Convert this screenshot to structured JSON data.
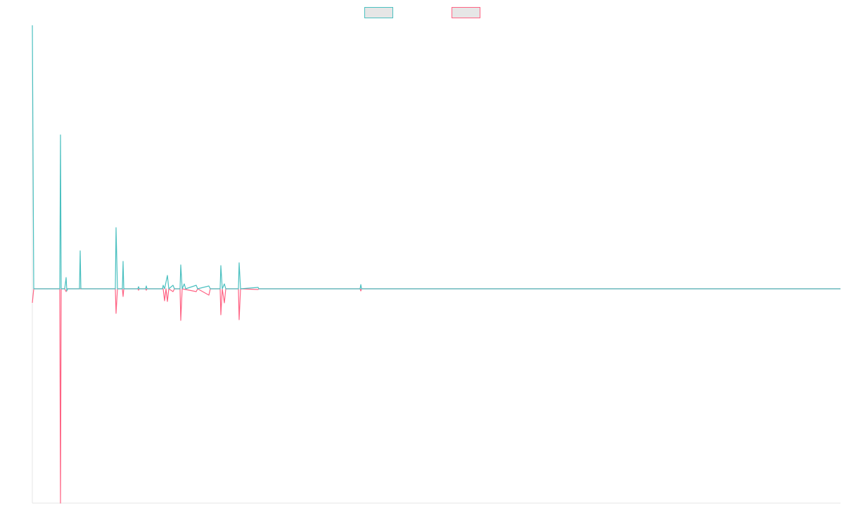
{
  "chart_data": {
    "type": "line",
    "xlim": [
      0,
      1149
    ],
    "ylim": [
      -305,
      375
    ],
    "grid": false,
    "legend": "top",
    "series": [
      {
        "color": "#4bc0c0",
        "x": [
          0,
          2,
          39,
          40,
          41,
          46,
          48,
          49,
          50,
          67,
          68,
          69,
          118,
          119,
          121,
          128,
          129,
          130,
          150,
          151,
          152,
          161,
          162,
          163,
          185,
          186,
          188,
          192,
          194,
          200,
          202,
          210,
          211,
          213,
          216,
          218,
          233,
          235,
          251,
          253,
          267,
          268,
          270,
          273,
          275,
          293,
          294,
          296,
          321,
          322,
          466,
          467,
          468,
          1149
        ],
        "values": [
          375,
          0,
          0,
          219,
          0,
          0,
          16,
          -3,
          0,
          0,
          54,
          0,
          0,
          87,
          0,
          0,
          39,
          0,
          0,
          3,
          0,
          0,
          4,
          0,
          0,
          5,
          0,
          19,
          0,
          5,
          0,
          0,
          34,
          0,
          7,
          0,
          5,
          0,
          4,
          0,
          0,
          33,
          0,
          7,
          0,
          0,
          37,
          0,
          2,
          0,
          0,
          6,
          0,
          0
        ]
      },
      {
        "color": "#ff6384",
        "x": [
          0,
          2,
          39,
          40,
          41,
          46,
          48,
          50,
          118,
          119,
          121,
          128,
          129,
          130,
          150,
          151,
          152,
          161,
          162,
          163,
          186,
          188,
          190,
          192,
          194,
          200,
          202,
          210,
          211,
          213,
          233,
          235,
          251,
          253,
          267,
          268,
          270,
          273,
          275,
          293,
          294,
          296,
          321,
          322,
          466,
          467,
          468,
          1149
        ],
        "values": [
          -20,
          0,
          0,
          -305,
          0,
          0,
          -4,
          0,
          0,
          -35,
          0,
          0,
          -11,
          0,
          0,
          -2,
          0,
          0,
          -2,
          0,
          0,
          -17,
          0,
          -18,
          0,
          -4,
          0,
          0,
          -45,
          0,
          -4,
          0,
          -9,
          0,
          0,
          -37,
          0,
          -20,
          0,
          0,
          -44,
          0,
          -1,
          0,
          0,
          -3,
          0,
          0
        ]
      }
    ]
  }
}
